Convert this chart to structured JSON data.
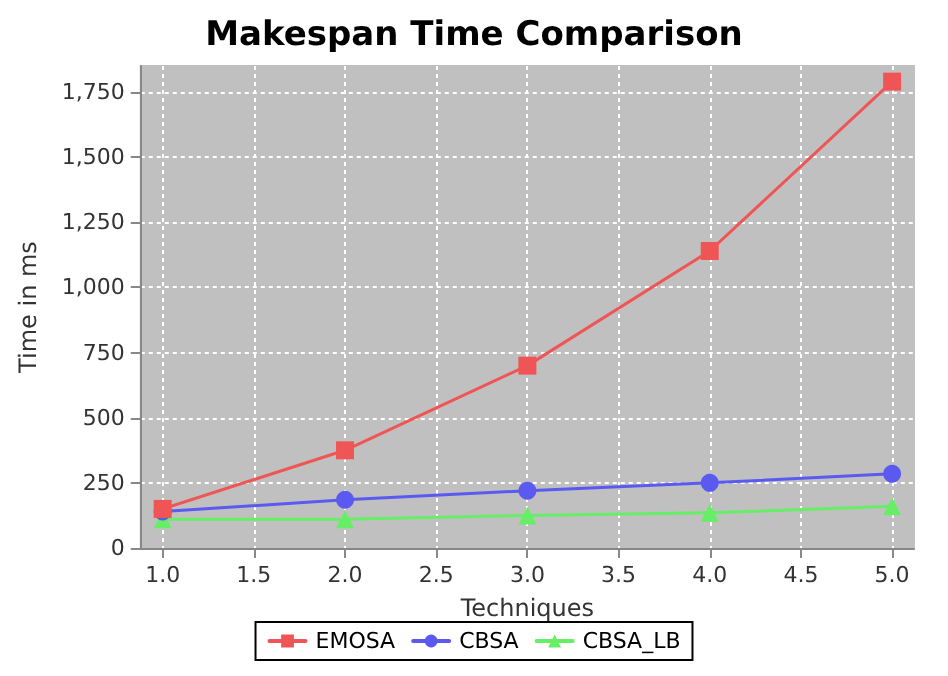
{
  "chart_data": {
    "type": "line",
    "title": "Makespan Time Comparison",
    "xlabel": "Techniques",
    "ylabel": "Time in ms",
    "x": [
      1.0,
      2.0,
      3.0,
      4.0,
      5.0
    ],
    "series": [
      {
        "name": "EMOSA",
        "color": "#f05555",
        "marker": "square",
        "values": [
          150,
          375,
          700,
          1140,
          1790
        ]
      },
      {
        "name": "CBSA",
        "color": "#5a5af0",
        "marker": "circle",
        "values": [
          140,
          185,
          220,
          250,
          285
        ]
      },
      {
        "name": "CBSA_LB",
        "color": "#66ee66",
        "marker": "triangle",
        "values": [
          110,
          110,
          125,
          135,
          160
        ]
      }
    ],
    "xlim": [
      0.88,
      5.12
    ],
    "xticks": [
      {
        "value": 1,
        "label": "1.0"
      },
      {
        "value": 1.5,
        "label": "1.5"
      },
      {
        "value": 2,
        "label": "2.0"
      },
      {
        "value": 2.5,
        "label": "2.5"
      },
      {
        "value": 3,
        "label": "3.0"
      },
      {
        "value": 3.5,
        "label": "3.5"
      },
      {
        "value": 4,
        "label": "4.0"
      },
      {
        "value": 4.5,
        "label": "4.5"
      },
      {
        "value": 5,
        "label": "5.0"
      }
    ],
    "ylim": [
      0,
      1850
    ],
    "yticks": [
      0,
      250,
      500,
      750,
      {
        "value": 1000,
        "label": "1,000"
      },
      {
        "value": 1250,
        "label": "1,250"
      },
      {
        "value": 1500,
        "label": "1,500"
      },
      {
        "value": 1750,
        "label": "1,750"
      }
    ],
    "grid": true,
    "legend": "bottom",
    "line_style": "solid"
  }
}
